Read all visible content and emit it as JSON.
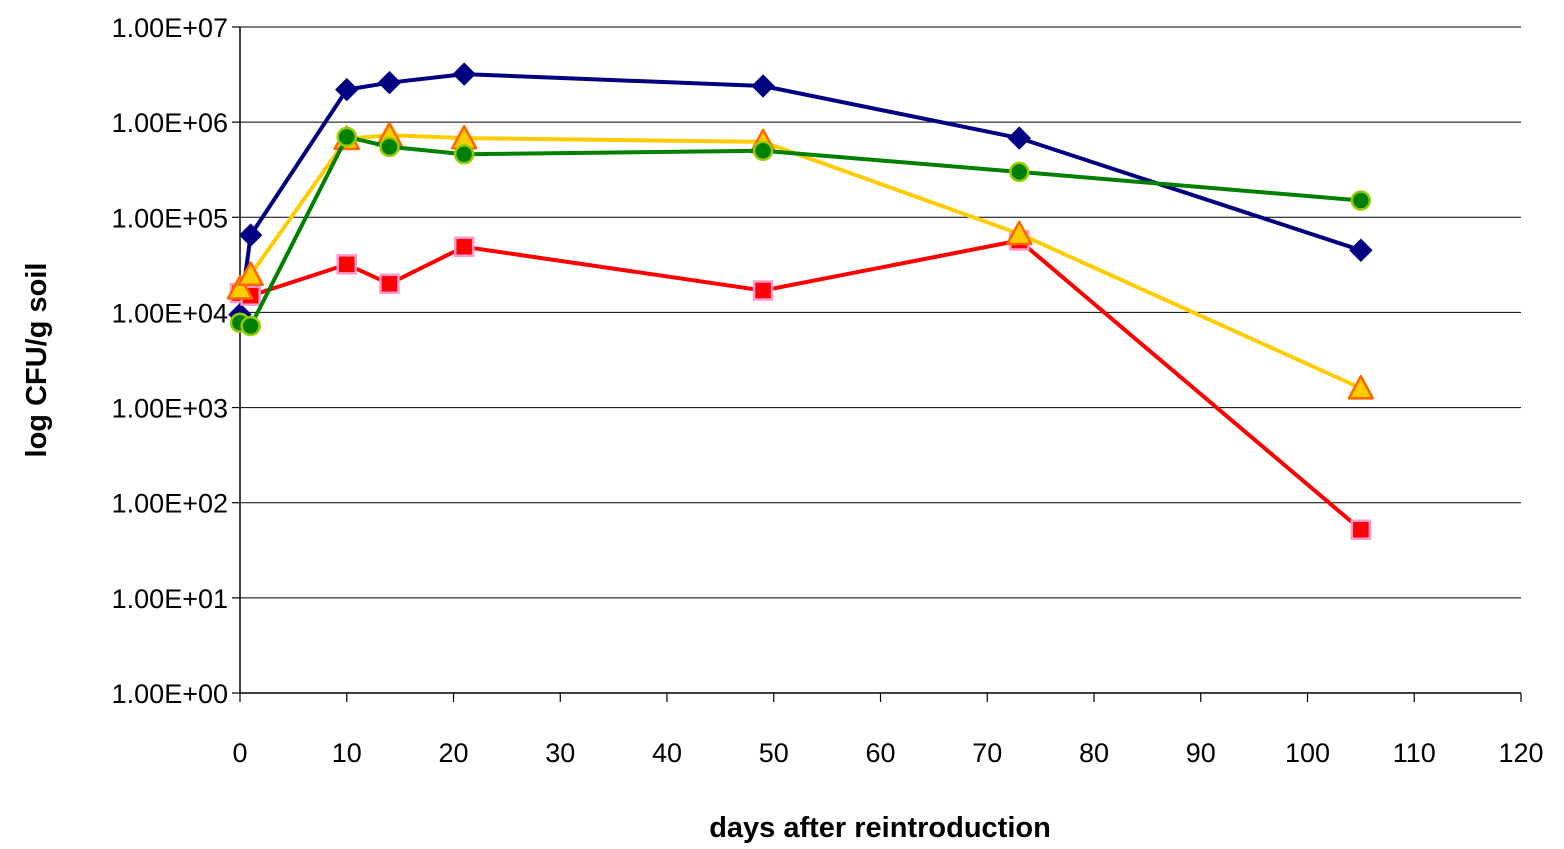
{
  "chart_data": {
    "type": "line",
    "title": "",
    "xlabel": "days after reintroduction",
    "ylabel": "log CFU/g soil",
    "x_scale": "linear",
    "y_scale": "log",
    "xlim": [
      0,
      120
    ],
    "ylim": [
      1,
      10000000
    ],
    "x_ticks": [
      0,
      10,
      20,
      30,
      40,
      50,
      60,
      70,
      80,
      90,
      100,
      110,
      120
    ],
    "x_tick_labels": [
      "0",
      "10",
      "20",
      "30",
      "40",
      "50",
      "60",
      "70",
      "80",
      "90",
      "100",
      "110",
      "120"
    ],
    "y_ticks": [
      1,
      10,
      100,
      1000,
      10000,
      100000,
      1000000,
      10000000
    ],
    "y_tick_labels": [
      "1.00E+00",
      "1.00E+01",
      "1.00E+02",
      "1.00E+03",
      "1.00E+04",
      "1.00E+05",
      "1.00E+06",
      "1.00E+07"
    ],
    "grid": "horizontal",
    "legend": "none",
    "series": [
      {
        "color": "#000080",
        "marker": "diamond",
        "points": [
          [
            0,
            9500
          ],
          [
            1,
            65000
          ],
          [
            10,
            2200000
          ],
          [
            14,
            2600000
          ],
          [
            21,
            3200000
          ],
          [
            49,
            2400000
          ],
          [
            73,
            680000
          ],
          [
            105,
            45000
          ]
        ]
      },
      {
        "color": "#ff0000",
        "marker": "square",
        "marker_stroke": "#ff99cc",
        "points": [
          [
            0,
            16000
          ],
          [
            1,
            15000
          ],
          [
            10,
            32000
          ],
          [
            14,
            20000
          ],
          [
            21,
            49000
          ],
          [
            49,
            17000
          ],
          [
            73,
            57000
          ],
          [
            105,
            52
          ]
        ]
      },
      {
        "color": "#ffcc00",
        "marker": "triangle",
        "marker_stroke": "#ff6600",
        "points": [
          [
            0,
            18000
          ],
          [
            1,
            25000
          ],
          [
            10,
            670000
          ],
          [
            14,
            730000
          ],
          [
            21,
            680000
          ],
          [
            49,
            620000
          ],
          [
            73,
            67000
          ],
          [
            105,
            1600
          ]
        ]
      },
      {
        "color": "#008000",
        "marker": "circle",
        "marker_stroke": "#99cc00",
        "points": [
          [
            0,
            7800
          ],
          [
            1,
            7200
          ],
          [
            10,
            700000
          ],
          [
            14,
            550000
          ],
          [
            21,
            460000
          ],
          [
            49,
            500000
          ],
          [
            73,
            300000
          ],
          [
            105,
            150000
          ]
        ]
      }
    ]
  }
}
